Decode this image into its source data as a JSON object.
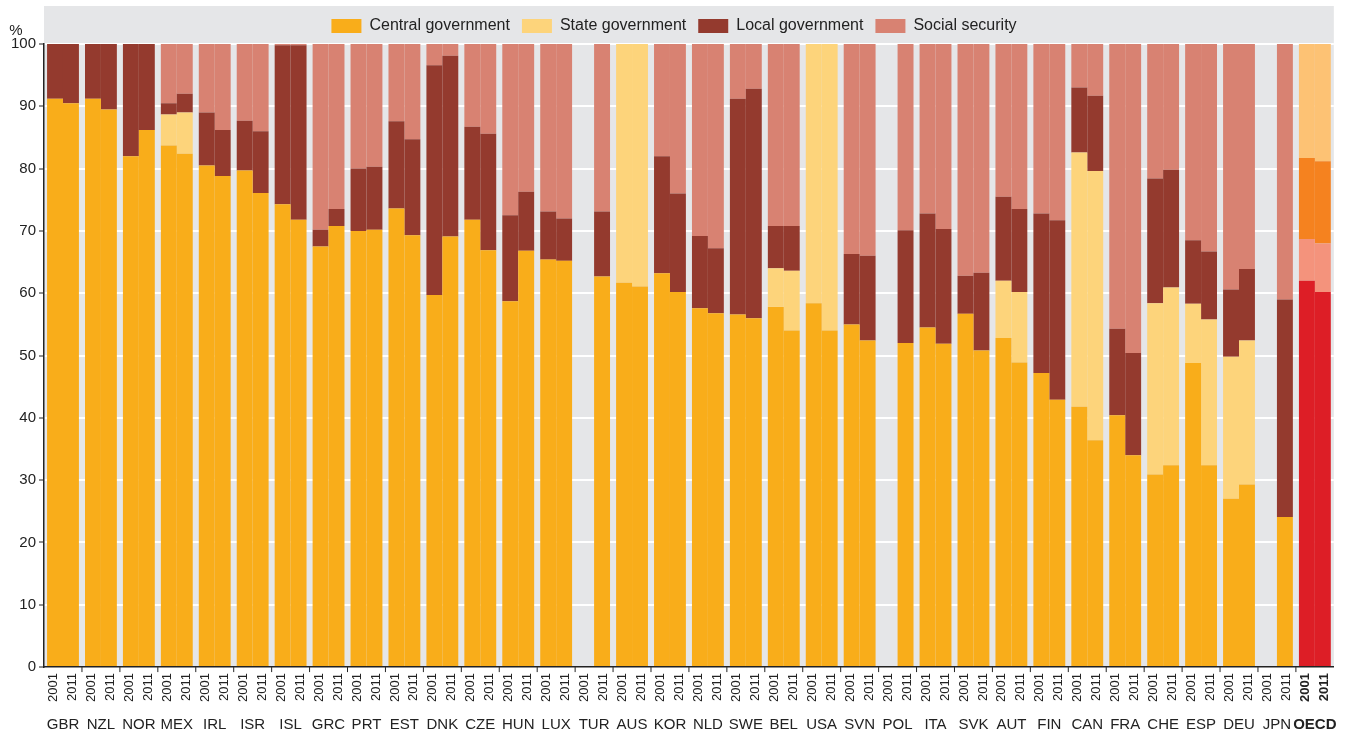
{
  "chart_data": {
    "type": "bar",
    "stacked": true,
    "ylabel": "%",
    "legend": "top",
    "grid": "y",
    "ylim": [
      0,
      100
    ],
    "yticks": [
      0,
      10,
      20,
      30,
      40,
      50,
      60,
      70,
      80,
      90,
      100
    ],
    "categories": [
      "2001",
      "2011",
      "2001",
      "2011",
      "2001",
      "2011",
      "2001",
      "2011",
      "2001",
      "2011",
      "2001",
      "2011",
      "2001",
      "2011",
      "2001",
      "2011",
      "2001",
      "2011",
      "2001",
      "2011",
      "2001",
      "2011",
      "2001",
      "2011",
      "2001",
      "2011",
      "2001",
      "2011",
      "2001",
      "2011",
      "2001",
      "2011",
      "2001",
      "2011",
      "2001",
      "2011",
      "2001",
      "2011",
      "2001",
      "2011",
      "2001",
      "2011",
      "2001",
      "2011",
      "2001",
      "2011",
      "2001",
      "2011",
      "2001",
      "2011",
      "2001",
      "2011",
      "2001",
      "2011",
      "2001",
      "2011",
      "2001",
      "2011",
      "2001",
      "2011",
      "2001",
      "2011",
      "2001",
      "2011",
      "2001",
      "2011",
      "2001",
      "2011"
    ],
    "annotations": [
      "GBR",
      "NZL",
      "NOR",
      "MEX",
      "IRL",
      "ISR",
      "ISL",
      "GRC",
      "PRT",
      "EST",
      "DNK",
      "CZE",
      "HUN",
      "LUX",
      "TUR",
      "AUS",
      "KOR",
      "NLD",
      "SWE",
      "BEL",
      "USA",
      "SVN",
      "POL",
      "ITA",
      "SVK",
      "AUT",
      "FIN",
      "CAN",
      "FRA",
      "CHE",
      "ESP",
      "DEU",
      "JPN",
      "OECD"
    ],
    "series": [
      {
        "name": "Central government",
        "color": "#f9ad1a",
        "values": [
          91.2,
          90.5,
          91.2,
          89.5,
          82,
          86.2,
          83.7,
          82.4,
          80.5,
          78.8,
          79.7,
          76.1,
          74.3,
          71.8,
          67.5,
          70.8,
          70,
          70.2,
          73.6,
          69.3,
          59.7,
          69.1,
          71.8,
          66.9,
          58.7,
          66.8,
          65.4,
          65.2,
          null,
          62.7,
          61.7,
          61.1,
          63.2,
          60.2,
          57.6,
          56.8,
          56.6,
          56,
          57.8,
          54,
          58.4,
          54,
          55,
          52.4,
          null,
          52,
          54.5,
          51.9,
          56.7,
          50.8,
          52.8,
          48.9,
          47.2,
          42.9,
          41.8,
          36.4,
          40.4,
          34,
          30.9,
          32.4,
          48.8,
          32.4,
          27,
          29.3,
          null,
          24.1,
          62,
          60.2
        ],
        "colors": [
          "#f9ad1a",
          "#f9ad1a",
          "#f9ad1a",
          "#f9ad1a",
          "#f9ad1a",
          "#f9ad1a",
          "#f9ad1a",
          "#f9ad1a",
          "#f9ad1a",
          "#f9ad1a",
          "#f9ad1a",
          "#f9ad1a",
          "#f9ad1a",
          "#f9ad1a",
          "#f9ad1a",
          "#f9ad1a",
          "#f9ad1a",
          "#f9ad1a",
          "#f9ad1a",
          "#f9ad1a",
          "#f9ad1a",
          "#f9ad1a",
          "#f9ad1a",
          "#f9ad1a",
          "#f9ad1a",
          "#f9ad1a",
          "#f9ad1a",
          "#f9ad1a",
          "#f9ad1a",
          "#f9ad1a",
          "#f9ad1a",
          "#f9ad1a",
          "#f9ad1a",
          "#f9ad1a",
          "#f9ad1a",
          "#f9ad1a",
          "#f9ad1a",
          "#f9ad1a",
          "#f9ad1a",
          "#f9ad1a",
          "#f9ad1a",
          "#f9ad1a",
          "#f9ad1a",
          "#f9ad1a",
          "#f9ad1a",
          "#f9ad1a",
          "#f9ad1a",
          "#f9ad1a",
          "#f9ad1a",
          "#f9ad1a",
          "#f9ad1a",
          "#f9ad1a",
          "#f9ad1a",
          "#f9ad1a",
          "#f9ad1a",
          "#f9ad1a",
          "#f9ad1a",
          "#f9ad1a",
          "#f9ad1a",
          "#f9ad1a",
          "#f9ad1a",
          "#f9ad1a",
          "#f9ad1a",
          "#f9ad1a",
          "#f9ad1a",
          "#f9ad1a",
          "#dd1e26",
          "#dd1e26"
        ]
      },
      {
        "name": "State government",
        "color": "#fdd47b",
        "values": [
          0,
          0,
          0,
          0,
          0,
          0,
          5,
          6.6,
          0,
          0,
          0,
          0,
          0,
          0,
          0,
          0,
          0,
          0,
          0,
          0,
          0,
          0,
          0,
          0,
          0,
          0,
          0,
          0,
          null,
          0,
          38.3,
          38.9,
          0,
          0,
          0,
          0,
          0,
          0,
          6.2,
          9.6,
          41.6,
          46,
          0,
          0,
          null,
          0,
          0,
          0,
          0,
          0,
          9.2,
          11.3,
          0,
          0,
          40.8,
          43.2,
          0,
          0,
          27.5,
          28.5,
          9.5,
          23.4,
          22.8,
          23.1,
          null,
          0,
          6.7,
          7.8
        ],
        "colors": [
          "#fdd47b",
          "#fdd47b",
          "#fdd47b",
          "#fdd47b",
          "#fdd47b",
          "#fdd47b",
          "#fdd47b",
          "#fdd47b",
          "#fdd47b",
          "#fdd47b",
          "#fdd47b",
          "#fdd47b",
          "#fdd47b",
          "#fdd47b",
          "#fdd47b",
          "#fdd47b",
          "#fdd47b",
          "#fdd47b",
          "#fdd47b",
          "#fdd47b",
          "#fdd47b",
          "#fdd47b",
          "#fdd47b",
          "#fdd47b",
          "#fdd47b",
          "#fdd47b",
          "#fdd47b",
          "#fdd47b",
          "#fdd47b",
          "#fdd47b",
          "#fdd47b",
          "#fdd47b",
          "#fdd47b",
          "#fdd47b",
          "#fdd47b",
          "#fdd47b",
          "#fdd47b",
          "#fdd47b",
          "#fdd47b",
          "#fdd47b",
          "#fdd47b",
          "#fdd47b",
          "#fdd47b",
          "#fdd47b",
          "#fdd47b",
          "#fdd47b",
          "#fdd47b",
          "#fdd47b",
          "#fdd47b",
          "#fdd47b",
          "#fdd47b",
          "#fdd47b",
          "#fdd47b",
          "#fdd47b",
          "#fdd47b",
          "#fdd47b",
          "#fdd47b",
          "#fdd47b",
          "#fdd47b",
          "#fdd47b",
          "#fdd47b",
          "#fdd47b",
          "#fdd47b",
          "#fdd47b",
          "#fdd47b",
          "#fdd47b",
          "#f4937c",
          "#f4937c"
        ]
      },
      {
        "name": "Local government",
        "color": "#943a2e",
        "values": [
          8.8,
          9.5,
          8.8,
          10.5,
          18,
          13.8,
          1.8,
          3,
          8.5,
          7.4,
          8,
          9.9,
          25.5,
          28,
          2.7,
          2.7,
          10,
          10.1,
          14,
          15.4,
          36.9,
          29,
          14.9,
          18.7,
          13.8,
          9.5,
          7.7,
          6.8,
          null,
          10.4,
          0,
          0,
          18.8,
          15.8,
          11.6,
          10.4,
          34.6,
          36.8,
          6.8,
          7.2,
          0,
          0,
          11.3,
          13.6,
          null,
          18.1,
          18.3,
          18.4,
          6.1,
          12.5,
          13.5,
          13.3,
          25.6,
          28.8,
          10.4,
          12.1,
          13.9,
          16.4,
          20,
          18.9,
          10.2,
          10.9,
          10.8,
          11.5,
          null,
          34.9,
          13,
          13.2
        ],
        "colors": [
          "#943a2e",
          "#943a2e",
          "#943a2e",
          "#943a2e",
          "#943a2e",
          "#943a2e",
          "#943a2e",
          "#943a2e",
          "#943a2e",
          "#943a2e",
          "#943a2e",
          "#943a2e",
          "#943a2e",
          "#943a2e",
          "#943a2e",
          "#943a2e",
          "#943a2e",
          "#943a2e",
          "#943a2e",
          "#943a2e",
          "#943a2e",
          "#943a2e",
          "#943a2e",
          "#943a2e",
          "#943a2e",
          "#943a2e",
          "#943a2e",
          "#943a2e",
          "#943a2e",
          "#943a2e",
          "#943a2e",
          "#943a2e",
          "#943a2e",
          "#943a2e",
          "#943a2e",
          "#943a2e",
          "#943a2e",
          "#943a2e",
          "#943a2e",
          "#943a2e",
          "#943a2e",
          "#943a2e",
          "#943a2e",
          "#943a2e",
          "#943a2e",
          "#943a2e",
          "#943a2e",
          "#943a2e",
          "#943a2e",
          "#943a2e",
          "#943a2e",
          "#943a2e",
          "#943a2e",
          "#943a2e",
          "#943a2e",
          "#943a2e",
          "#943a2e",
          "#943a2e",
          "#943a2e",
          "#943a2e",
          "#943a2e",
          "#943a2e",
          "#943a2e",
          "#943a2e",
          "#943a2e",
          "#943a2e",
          "#f5821f",
          "#f5821f"
        ]
      },
      {
        "name": "Social security",
        "color": "#d88272",
        "values": [
          0,
          0,
          0,
          0,
          0,
          0,
          9.5,
          8,
          11,
          13.8,
          12.3,
          14,
          0.4,
          0.4,
          29.8,
          26.5,
          20,
          19.7,
          12.4,
          15.3,
          3.4,
          1.9,
          13.3,
          14.4,
          27.5,
          23.7,
          26.9,
          28,
          null,
          26.9,
          0,
          0,
          18,
          24,
          30.8,
          32.8,
          8.8,
          7.2,
          29.2,
          29.2,
          0,
          0,
          33.7,
          34,
          null,
          29.9,
          27.2,
          29.7,
          37.2,
          36.7,
          24.5,
          26.5,
          27.2,
          28.3,
          7,
          8.3,
          45.7,
          49.6,
          21.6,
          20.2,
          31.5,
          33.3,
          39.4,
          36.1,
          null,
          41,
          18.3,
          18.8
        ],
        "colors": [
          "#d88272",
          "#d88272",
          "#d88272",
          "#d88272",
          "#d88272",
          "#d88272",
          "#d88272",
          "#d88272",
          "#d88272",
          "#d88272",
          "#d88272",
          "#d88272",
          "#d88272",
          "#d88272",
          "#d88272",
          "#d88272",
          "#d88272",
          "#d88272",
          "#d88272",
          "#d88272",
          "#d88272",
          "#d88272",
          "#d88272",
          "#d88272",
          "#d88272",
          "#d88272",
          "#d88272",
          "#d88272",
          "#d88272",
          "#d88272",
          "#d88272",
          "#d88272",
          "#d88272",
          "#d88272",
          "#d88272",
          "#d88272",
          "#d88272",
          "#d88272",
          "#d88272",
          "#d88272",
          "#d88272",
          "#d88272",
          "#d88272",
          "#d88272",
          "#d88272",
          "#d88272",
          "#d88272",
          "#d88272",
          "#d88272",
          "#d88272",
          "#d88272",
          "#d88272",
          "#d88272",
          "#d88272",
          "#d88272",
          "#d88272",
          "#d88272",
          "#d88272",
          "#d88272",
          "#d88272",
          "#d88272",
          "#d88272",
          "#d88272",
          "#d88272",
          "#d88272",
          "#d88272",
          "#fdc274",
          "#fdc274"
        ]
      }
    ]
  }
}
